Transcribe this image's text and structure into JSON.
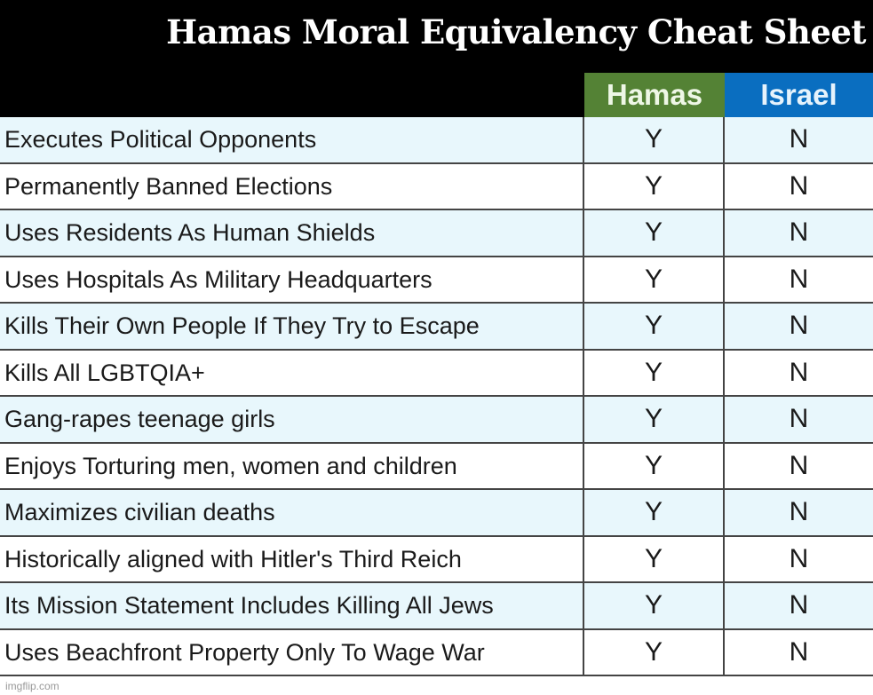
{
  "title": "Hamas Moral Equivalency Cheat Sheet",
  "columns": [
    "Hamas",
    "Israel"
  ],
  "colors": {
    "hamas_header": "#548235",
    "israel_header": "#0a6ec0",
    "row_alt": "#e8f7fc"
  },
  "rows": [
    {
      "label": "Executes Political Opponents",
      "hamas": "Y",
      "israel": "N"
    },
    {
      "label": "Permanently Banned Elections",
      "hamas": "Y",
      "israel": "N"
    },
    {
      "label": "Uses Residents As Human Shields",
      "hamas": "Y",
      "israel": "N"
    },
    {
      "label": "Uses Hospitals As Military Headquarters",
      "hamas": "Y",
      "israel": "N"
    },
    {
      "label": "Kills Their Own People If They Try to Escape",
      "hamas": "Y",
      "israel": "N"
    },
    {
      "label": "Kills All LGBTQIA+",
      "hamas": "Y",
      "israel": "N"
    },
    {
      "label": "Gang-rapes teenage girls",
      "hamas": "Y",
      "israel": "N"
    },
    {
      "label": "Enjoys Torturing men, women and children",
      "hamas": "Y",
      "israel": "N"
    },
    {
      "label": "Maximizes civilian deaths",
      "hamas": "Y",
      "israel": "N"
    },
    {
      "label": "Historically aligned with Hitler's Third Reich",
      "hamas": "Y",
      "israel": "N"
    },
    {
      "label": "Its Mission Statement Includes Killing All Jews",
      "hamas": "Y",
      "israel": "N"
    },
    {
      "label": "Uses Beachfront Property Only To Wage War",
      "hamas": "Y",
      "israel": "N"
    }
  ],
  "watermark": "imgflip.com"
}
